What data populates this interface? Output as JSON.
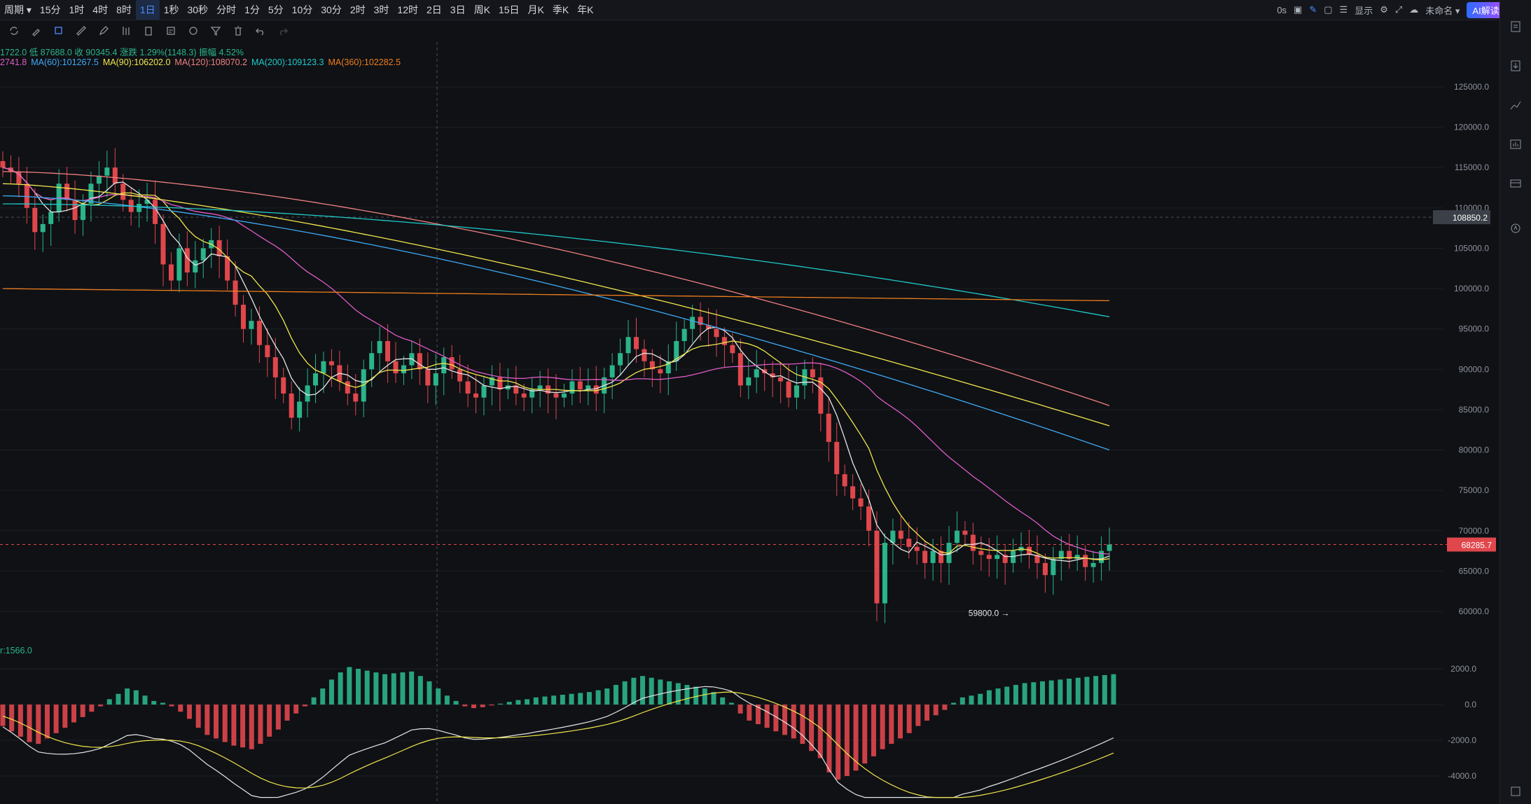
{
  "toolbar": {
    "periods": [
      "周期 ▾",
      "15分",
      "1时",
      "4时",
      "8时",
      "1日",
      "1秒",
      "30秒",
      "分时",
      "1分",
      "5分",
      "10分",
      "30分",
      "2时",
      "3时",
      "12时",
      "2日",
      "3日",
      "周K",
      "15日",
      "月K",
      "季K",
      "年K"
    ],
    "active_period": "1日",
    "right": {
      "countdown": "0s",
      "display_label": "显示",
      "workspace_name": "未命名 ▾",
      "ai_label": "AI解读"
    }
  },
  "info": {
    "ohlc": "1722.0  低 87688.0  收 90345.4  涨跌 1.29%(1148.3)  振幅 4.52%",
    "ma_row": [
      {
        "text": "2741.8",
        "color": "#e05cc8"
      },
      {
        "text": "MA(60):101267.5",
        "color": "#3fa9f5"
      },
      {
        "text": "MA(90):106202.0",
        "color": "#f2e64b"
      },
      {
        "text": "MA(120):108070.2",
        "color": "#f08080"
      },
      {
        "text": "MA(200):109123.3",
        "color": "#20c9c9"
      },
      {
        "text": "MA(360):102282.5",
        "color": "#f07d1e"
      }
    ],
    "macd_label": "r:1566.0"
  },
  "colors": {
    "up": "#2bb48a",
    "down": "#e0474c",
    "bg": "#0f1115",
    "grid": "#1c1f25",
    "axis_text": "#8d939c"
  },
  "chart_data": {
    "type": "candlestick",
    "price_axis": {
      "ticks": [
        125000,
        120000,
        115000,
        110000,
        105000,
        100000,
        95000,
        90000,
        85000,
        80000,
        75000,
        70000,
        65000,
        60000
      ]
    },
    "price_axis_labels": [
      "125000.0",
      "120000.0",
      "115000.0",
      "110000.0",
      "105000.0",
      "100000.0",
      "95000.0",
      "90000.0",
      "85000.0",
      "80000.0",
      "75000.0",
      "70000.0",
      "65000.0",
      "60000.0"
    ],
    "last_price": {
      "value": 68285.7,
      "label": "68285.7"
    },
    "crosshair_price": {
      "value": 108850.2,
      "label": "108850.2"
    },
    "min_marker": {
      "value": 59800.0,
      "label": "59800.0 →"
    },
    "closes": [
      115000,
      114500,
      113000,
      110000,
      107000,
      108000,
      109500,
      113000,
      111000,
      108500,
      110500,
      113000,
      114000,
      115000,
      113000,
      111000,
      109500,
      110500,
      111000,
      108000,
      103000,
      101000,
      105000,
      102000,
      103500,
      105000,
      106000,
      104000,
      101000,
      98000,
      95000,
      96000,
      93000,
      91500,
      89000,
      87000,
      84000,
      86000,
      88000,
      89500,
      91000,
      90500,
      88500,
      87000,
      86000,
      90000,
      92000,
      93500,
      91000,
      89500,
      90500,
      92000,
      90000,
      88000,
      89500,
      91500,
      90000,
      88500,
      87000,
      86500,
      88000,
      89000,
      87500,
      88000,
      87000,
      86500,
      87500,
      88000,
      87000,
      86500,
      87000,
      88500,
      87500,
      88000,
      87000,
      89000,
      90500,
      92000,
      94000,
      92500,
      91000,
      90000,
      89500,
      91000,
      93500,
      95000,
      96500,
      95500,
      95000,
      94000,
      93000,
      92000,
      88000,
      89000,
      90000,
      89500,
      89000,
      88500,
      86500,
      88000,
      90000,
      89000,
      84500,
      81000,
      77000,
      75500,
      74000,
      73000,
      70000,
      61000,
      68500,
      70000,
      69000,
      68000,
      67500,
      66000,
      67500,
      66000,
      68500,
      70000,
      69500,
      67500,
      67000,
      66500,
      67000,
      66000,
      67500,
      68000,
      67000,
      66000,
      64500,
      66500,
      67500,
      66500,
      67000,
      65500,
      66000,
      67500,
      68285.7
    ],
    "ma_fast_white": "short-term average (unlabeled)",
    "ma_yellow": "short-term average (unlabeled)",
    "series_names": [
      "MA(60)",
      "MA(90)",
      "MA(120)",
      "MA(200)",
      "MA(360)"
    ],
    "macd": {
      "axis_labels": [
        "2000.0",
        "0.0",
        "-2000.0",
        "-4000.0"
      ],
      "axis_values": [
        2000,
        0,
        -2000,
        -4000
      ],
      "histogram": [
        -1200,
        -1500,
        -1800,
        -2100,
        -2200,
        -1900,
        -1600,
        -1300,
        -1000,
        -700,
        -400,
        -100,
        300,
        600,
        900,
        800,
        500,
        200,
        100,
        -100,
        -400,
        -800,
        -1300,
        -1700,
        -1900,
        -2100,
        -2300,
        -2400,
        -2500,
        -2200,
        -1800,
        -1400,
        -900,
        -500,
        -100,
        400,
        900,
        1400,
        1800,
        2100,
        2000,
        1900,
        1800,
        1700,
        1750,
        1800,
        1850,
        1600,
        1300,
        900,
        500,
        200,
        -100,
        -200,
        -150,
        -50,
        50,
        150,
        250,
        300,
        400,
        450,
        500,
        550,
        600,
        650,
        700,
        800,
        900,
        1100,
        1300,
        1500,
        1600,
        1500,
        1400,
        1300,
        1200,
        1100,
        1000,
        900,
        700,
        400,
        100,
        -500,
        -900,
        -1100,
        -1300,
        -1500,
        -1700,
        -1900,
        -2200,
        -2600,
        -3000,
        -3800,
        -4200,
        -4000,
        -3700,
        -3300,
        -2900,
        -2500,
        -2200,
        -1900,
        -1600,
        -1200,
        -900,
        -600,
        -300,
        100,
        400,
        500,
        600,
        800,
        900,
        1000,
        1100,
        1200,
        1250,
        1300,
        1350,
        1400,
        1450,
        1500,
        1550,
        1600,
        1650,
        1700
      ],
      "dif_start": -200,
      "dea_start": -500
    }
  }
}
